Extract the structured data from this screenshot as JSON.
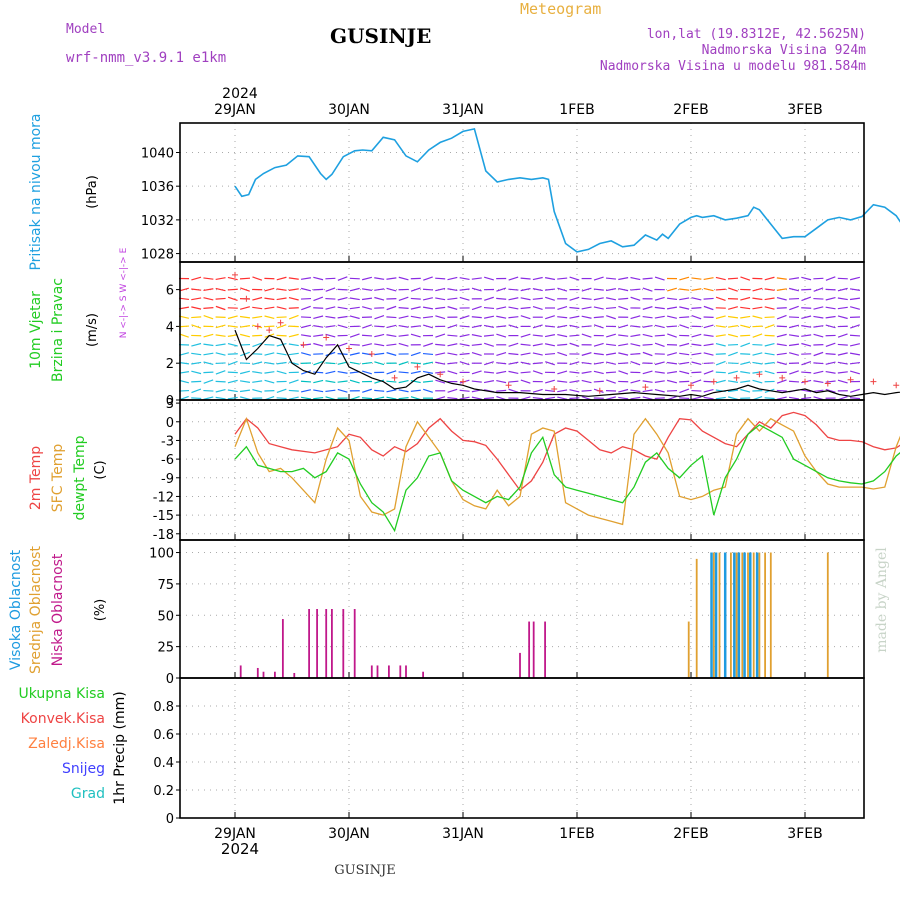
{
  "header": {
    "model_label": "Model",
    "model_name": "wrf-nmm_v3.9.1 e1km",
    "station": "GUSINJE",
    "meteogram_label": "Meteogram",
    "lonlat": "lon,lat (19.8312E, 42.5625N)",
    "elevation": "Nadmorska Visina 924m",
    "model_elevation": "Nadmorska Visina u modelu 981.584m",
    "footer_station": "GUSINJE",
    "credit": "made by Angel"
  },
  "colors": {
    "pressure": "#1ea0e0",
    "temp2m": "#ee4444",
    "sfc_temp": "#e0a030",
    "dewpt": "#22cc22",
    "cloud_high": "#1e9be0",
    "cloud_mid": "#e0a030",
    "cloud_low": "#c0188a",
    "wind_speed": "#000000",
    "gust": "#ee4444",
    "header_purple": "#a040c0",
    "header_orange": "#e8b040"
  },
  "time_axis": {
    "year": "2024",
    "days": [
      "29JAN",
      "30JAN",
      "31JAN",
      "1FEB",
      "2FEB",
      "3FEB"
    ]
  },
  "chart_data": [
    {
      "type": "line",
      "panel": "pressure",
      "ylabel_lines": [
        "Pritisak na nivou mora",
        "(hPa)"
      ],
      "yticks": [
        1028,
        1032,
        1036,
        1040
      ],
      "ylim": [
        1027,
        1043.5
      ],
      "series": [
        {
          "name": "Pritisak na nivou mora",
          "x": [
            0,
            0.06,
            0.12,
            0.18,
            0.25,
            0.35,
            0.45,
            0.55,
            0.65,
            0.75,
            0.8,
            0.85,
            0.95,
            1.05,
            1.12,
            1.2,
            1.3,
            1.4,
            1.5,
            1.6,
            1.7,
            1.8,
            1.9,
            2.0,
            2.1,
            2.2,
            2.3,
            2.4,
            2.5,
            2.6,
            2.7,
            2.75,
            2.8,
            2.9,
            3.0,
            3.1,
            3.2,
            3.3,
            3.4,
            3.5,
            3.6,
            3.7,
            3.75,
            3.8,
            3.9,
            4.0,
            4.05,
            4.1,
            4.2,
            4.3,
            4.4,
            4.5,
            4.55,
            4.6,
            4.7,
            4.8,
            4.9,
            5.0,
            5.1,
            5.2,
            5.3,
            5.4,
            5.5,
            5.6,
            5.7,
            5.8,
            5.9,
            5.95
          ],
          "y": [
            1036.0,
            1034.8,
            1035.0,
            1036.8,
            1037.5,
            1038.2,
            1038.5,
            1039.6,
            1039.5,
            1037.5,
            1036.8,
            1037.4,
            1039.5,
            1040.2,
            1040.3,
            1040.2,
            1041.8,
            1041.5,
            1039.6,
            1038.9,
            1040.3,
            1041.2,
            1041.7,
            1042.5,
            1042.8,
            1037.8,
            1036.5,
            1036.8,
            1037.0,
            1036.8,
            1037.0,
            1036.8,
            1033.0,
            1029.2,
            1028.2,
            1028.5,
            1029.2,
            1029.5,
            1028.8,
            1029.0,
            1030.2,
            1029.6,
            1030.3,
            1029.8,
            1031.5,
            1032.3,
            1032.5,
            1032.3,
            1032.5,
            1032.0,
            1032.2,
            1032.5,
            1033.5,
            1033.2,
            1031.5,
            1029.8,
            1030.0,
            1030.0,
            1031.0,
            1032.0,
            1032.3,
            1032.0,
            1032.4,
            1033.8,
            1033.5,
            1032.5,
            1030.5,
            1029.8
          ]
        }
      ]
    },
    {
      "type": "line",
      "panel": "wind",
      "ylabel_lines": [
        "10m Vjetar",
        "Brzina i Pravac",
        "(m/s)"
      ],
      "direction_key": "N <-|-> S  W <-|-> E",
      "yticks": [
        0,
        2,
        4,
        6
      ],
      "ylim": [
        0,
        7.5
      ],
      "series": [
        {
          "name": "Brzina",
          "x": [
            0,
            0.1,
            0.2,
            0.3,
            0.4,
            0.5,
            0.6,
            0.7,
            0.8,
            0.9,
            1.0,
            1.1,
            1.2,
            1.3,
            1.4,
            1.5,
            1.6,
            1.7,
            1.8,
            1.9,
            2.0,
            2.1,
            2.2,
            2.3,
            2.5,
            2.7,
            2.9,
            3.1,
            3.3,
            3.5,
            3.7,
            3.9,
            4.0,
            4.1,
            4.2,
            4.3,
            4.4,
            4.5,
            4.6,
            4.7,
            4.8,
            4.9,
            5.0,
            5.1,
            5.2,
            5.3,
            5.4,
            5.5,
            5.6,
            5.7,
            5.8,
            5.95
          ],
          "y": [
            3.8,
            2.2,
            2.8,
            3.5,
            3.3,
            2.0,
            1.6,
            1.4,
            2.3,
            3.0,
            1.8,
            1.5,
            1.2,
            1.0,
            0.6,
            0.7,
            1.2,
            1.4,
            1.1,
            0.9,
            0.8,
            0.6,
            0.5,
            0.4,
            0.4,
            0.3,
            0.3,
            0.2,
            0.3,
            0.4,
            0.3,
            0.2,
            0.3,
            0.2,
            0.4,
            0.5,
            0.6,
            0.8,
            0.6,
            0.5,
            0.4,
            0.5,
            0.6,
            0.4,
            0.5,
            0.3,
            0.2,
            0.3,
            0.4,
            0.3,
            0.4,
            0.5
          ]
        },
        {
          "name": "Udari",
          "x": [
            0,
            0.1,
            0.2,
            0.3,
            0.4,
            0.6,
            0.8,
            1.0,
            1.2,
            1.4,
            1.6,
            1.8,
            2.0,
            2.4,
            2.8,
            3.2,
            3.6,
            4.0,
            4.2,
            4.4,
            4.6,
            4.8,
            5.0,
            5.2,
            5.4,
            5.6,
            5.8,
            5.95
          ],
          "y": [
            6.8,
            5.5,
            4.0,
            3.8,
            4.2,
            3.0,
            3.4,
            2.8,
            2.5,
            1.2,
            1.8,
            1.4,
            1.0,
            0.8,
            0.6,
            0.5,
            0.7,
            0.8,
            1.0,
            1.2,
            1.4,
            1.2,
            1.0,
            0.9,
            1.1,
            1.0,
            0.8,
            0.7
          ]
        }
      ]
    },
    {
      "type": "line",
      "panel": "temperature",
      "ylabel_lines": [
        "2m Temp",
        "SFC Temp",
        "dewpt Temp",
        "(C)"
      ],
      "yticks": [
        3,
        0,
        -3,
        -6,
        -9,
        -12,
        -15,
        -18
      ],
      "ylim": [
        -19,
        3.5
      ],
      "series": [
        {
          "name": "2m Temp",
          "x": [
            0,
            0.1,
            0.2,
            0.3,
            0.4,
            0.5,
            0.7,
            0.9,
            1.0,
            1.1,
            1.2,
            1.3,
            1.4,
            1.5,
            1.6,
            1.7,
            1.8,
            1.9,
            2.0,
            2.1,
            2.2,
            2.3,
            2.4,
            2.5,
            2.6,
            2.7,
            2.8,
            2.9,
            3.0,
            3.1,
            3.2,
            3.3,
            3.4,
            3.5,
            3.6,
            3.7,
            3.8,
            3.9,
            4.0,
            4.1,
            4.2,
            4.3,
            4.4,
            4.5,
            4.6,
            4.7,
            4.8,
            4.9,
            5.0,
            5.1,
            5.2,
            5.3,
            5.4,
            5.5,
            5.6,
            5.7,
            5.8,
            5.9,
            5.95
          ],
          "y": [
            -2.0,
            0.5,
            -1.0,
            -3.5,
            -4.0,
            -4.5,
            -5.0,
            -4.0,
            -2.0,
            -2.5,
            -4.5,
            -5.5,
            -4.0,
            -4.8,
            -3.5,
            -1.0,
            0.5,
            -1.5,
            -3.0,
            -3.2,
            -3.8,
            -6.0,
            -8.5,
            -11.0,
            -9.5,
            -6.5,
            -2.0,
            -1.0,
            -1.5,
            -3.0,
            -4.5,
            -5.0,
            -4.0,
            -4.5,
            -5.5,
            -6.0,
            -2.5,
            0.5,
            0.3,
            -1.5,
            -2.5,
            -3.5,
            -4.0,
            -2.0,
            0.0,
            -1.0,
            1.0,
            1.5,
            1.0,
            -0.5,
            -2.5,
            -3.0,
            -3.0,
            -3.2,
            -4.0,
            -4.5,
            -4.2,
            -3.0,
            -2.0
          ]
        },
        {
          "name": "SFC Temp",
          "x": [
            0,
            0.1,
            0.2,
            0.3,
            0.4,
            0.5,
            0.7,
            0.8,
            0.9,
            1.0,
            1.1,
            1.2,
            1.3,
            1.4,
            1.5,
            1.6,
            1.7,
            1.8,
            1.9,
            2.0,
            2.1,
            2.2,
            2.3,
            2.4,
            2.5,
            2.6,
            2.7,
            2.8,
            2.9,
            3.0,
            3.1,
            3.2,
            3.3,
            3.4,
            3.5,
            3.6,
            3.7,
            3.8,
            3.9,
            4.0,
            4.1,
            4.2,
            4.3,
            4.4,
            4.5,
            4.6,
            4.7,
            4.8,
            4.9,
            5.0,
            5.1,
            5.2,
            5.3,
            5.4,
            5.5,
            5.6,
            5.7,
            5.8,
            5.9,
            5.95
          ],
          "y": [
            -4.0,
            0.5,
            -5.0,
            -8.0,
            -7.5,
            -9.0,
            -13.0,
            -6.0,
            -1.0,
            -3.0,
            -12.0,
            -14.5,
            -15.0,
            -14.0,
            -4.0,
            0.0,
            -2.5,
            -5.0,
            -9.5,
            -12.5,
            -13.5,
            -14.0,
            -11.0,
            -13.5,
            -12.0,
            -2.0,
            -1.0,
            -1.5,
            -13.0,
            -14.0,
            -15.0,
            -15.5,
            -16.0,
            -16.5,
            -2.0,
            0.5,
            -2.0,
            -5.0,
            -12.0,
            -12.5,
            -12.0,
            -11.0,
            -10.5,
            -2.0,
            0.5,
            -1.5,
            0.5,
            -0.5,
            -1.5,
            -5.5,
            -8.0,
            -10.0,
            -10.5,
            -10.5,
            -10.5,
            -10.8,
            -10.5,
            -4.0,
            0.5,
            1.5
          ]
        },
        {
          "name": "dewpt Temp",
          "x": [
            0,
            0.1,
            0.2,
            0.3,
            0.4,
            0.5,
            0.6,
            0.7,
            0.8,
            0.9,
            1.0,
            1.1,
            1.2,
            1.3,
            1.4,
            1.5,
            1.6,
            1.7,
            1.8,
            1.9,
            2.0,
            2.1,
            2.2,
            2.3,
            2.4,
            2.5,
            2.6,
            2.7,
            2.8,
            2.9,
            3.0,
            3.1,
            3.2,
            3.3,
            3.4,
            3.5,
            3.6,
            3.7,
            3.8,
            3.9,
            4.0,
            4.1,
            4.2,
            4.3,
            4.4,
            4.5,
            4.6,
            4.7,
            4.8,
            4.9,
            5.0,
            5.1,
            5.2,
            5.3,
            5.4,
            5.5,
            5.6,
            5.7,
            5.8,
            5.9,
            5.95
          ],
          "y": [
            -6.0,
            -4.0,
            -7.0,
            -7.5,
            -8.0,
            -8.0,
            -7.5,
            -9.0,
            -8.0,
            -5.0,
            -6.0,
            -10.0,
            -13.0,
            -14.5,
            -17.5,
            -11.0,
            -9.0,
            -5.5,
            -5.0,
            -9.5,
            -11.0,
            -12.0,
            -13.0,
            -12.0,
            -12.5,
            -10.5,
            -5.0,
            -2.5,
            -8.5,
            -10.5,
            -11.0,
            -11.5,
            -12.0,
            -12.5,
            -13.0,
            -10.5,
            -6.5,
            -5.0,
            -7.5,
            -9.0,
            -7.0,
            -5.5,
            -15.0,
            -9.0,
            -6.0,
            -2.0,
            -0.5,
            -1.5,
            -2.5,
            -6.0,
            -7.0,
            -8.0,
            -9.0,
            -9.5,
            -9.8,
            -10.0,
            -9.5,
            -8.0,
            -5.5,
            -4.0,
            -3.0
          ]
        }
      ]
    },
    {
      "type": "bar",
      "panel": "cloud",
      "ylabel_lines": [
        "Visoka Oblacnost",
        "Srednja Oblacnost",
        "Niska Oblacnost",
        "(%)"
      ],
      "yticks": [
        0,
        25,
        50,
        75,
        100
      ],
      "ylim": [
        0,
        110
      ],
      "series": [
        {
          "name": "Niska Oblacnost",
          "x": [
            0.05,
            0.2,
            0.25,
            0.35,
            0.42,
            0.52,
            0.65,
            0.72,
            0.8,
            0.85,
            0.95,
            1.05,
            1.2,
            1.25,
            1.35,
            1.45,
            1.5,
            1.65,
            2.5,
            2.58,
            2.62,
            2.72,
            4.3
          ],
          "y": [
            10,
            8,
            5,
            5,
            47,
            4,
            55,
            55,
            55,
            55,
            55,
            55,
            10,
            10,
            10,
            10,
            10,
            5,
            20,
            45,
            45,
            45,
            5
          ]
        },
        {
          "name": "Srednja Oblacnost",
          "x": [
            3.98,
            4.05,
            4.2,
            4.25,
            4.3,
            4.35,
            4.4,
            4.45,
            4.5,
            4.55,
            4.6,
            4.65,
            4.7,
            5.2
          ],
          "y": [
            45,
            95,
            100,
            100,
            100,
            100,
            100,
            100,
            100,
            100,
            100,
            100,
            100,
            100
          ]
        },
        {
          "name": "Visoka Oblacnost",
          "x": [
            4.18,
            4.22,
            4.3,
            4.38,
            4.42,
            4.47,
            4.52,
            4.58
          ],
          "y": [
            100,
            100,
            100,
            100,
            100,
            100,
            100,
            100
          ]
        }
      ]
    },
    {
      "type": "bar",
      "panel": "precip",
      "ylabel_lines": [
        "1hr Precip (mm)"
      ],
      "legend": [
        "Ukupna Kisa",
        "Konvek.Kisa",
        "Zaledj.Kisa",
        "Snijeg",
        "Grad"
      ],
      "yticks": [
        0,
        0.2,
        0.4,
        0.6,
        0.8
      ],
      "ylim": [
        0,
        1.0
      ],
      "series": [
        {
          "name": "Ukupna Kisa",
          "x": [],
          "y": []
        },
        {
          "name": "Konvek.Kisa",
          "x": [],
          "y": []
        },
        {
          "name": "Zaledj.Kisa",
          "x": [],
          "y": []
        },
        {
          "name": "Snijeg",
          "x": [],
          "y": []
        },
        {
          "name": "Grad",
          "x": [],
          "y": []
        }
      ]
    }
  ]
}
